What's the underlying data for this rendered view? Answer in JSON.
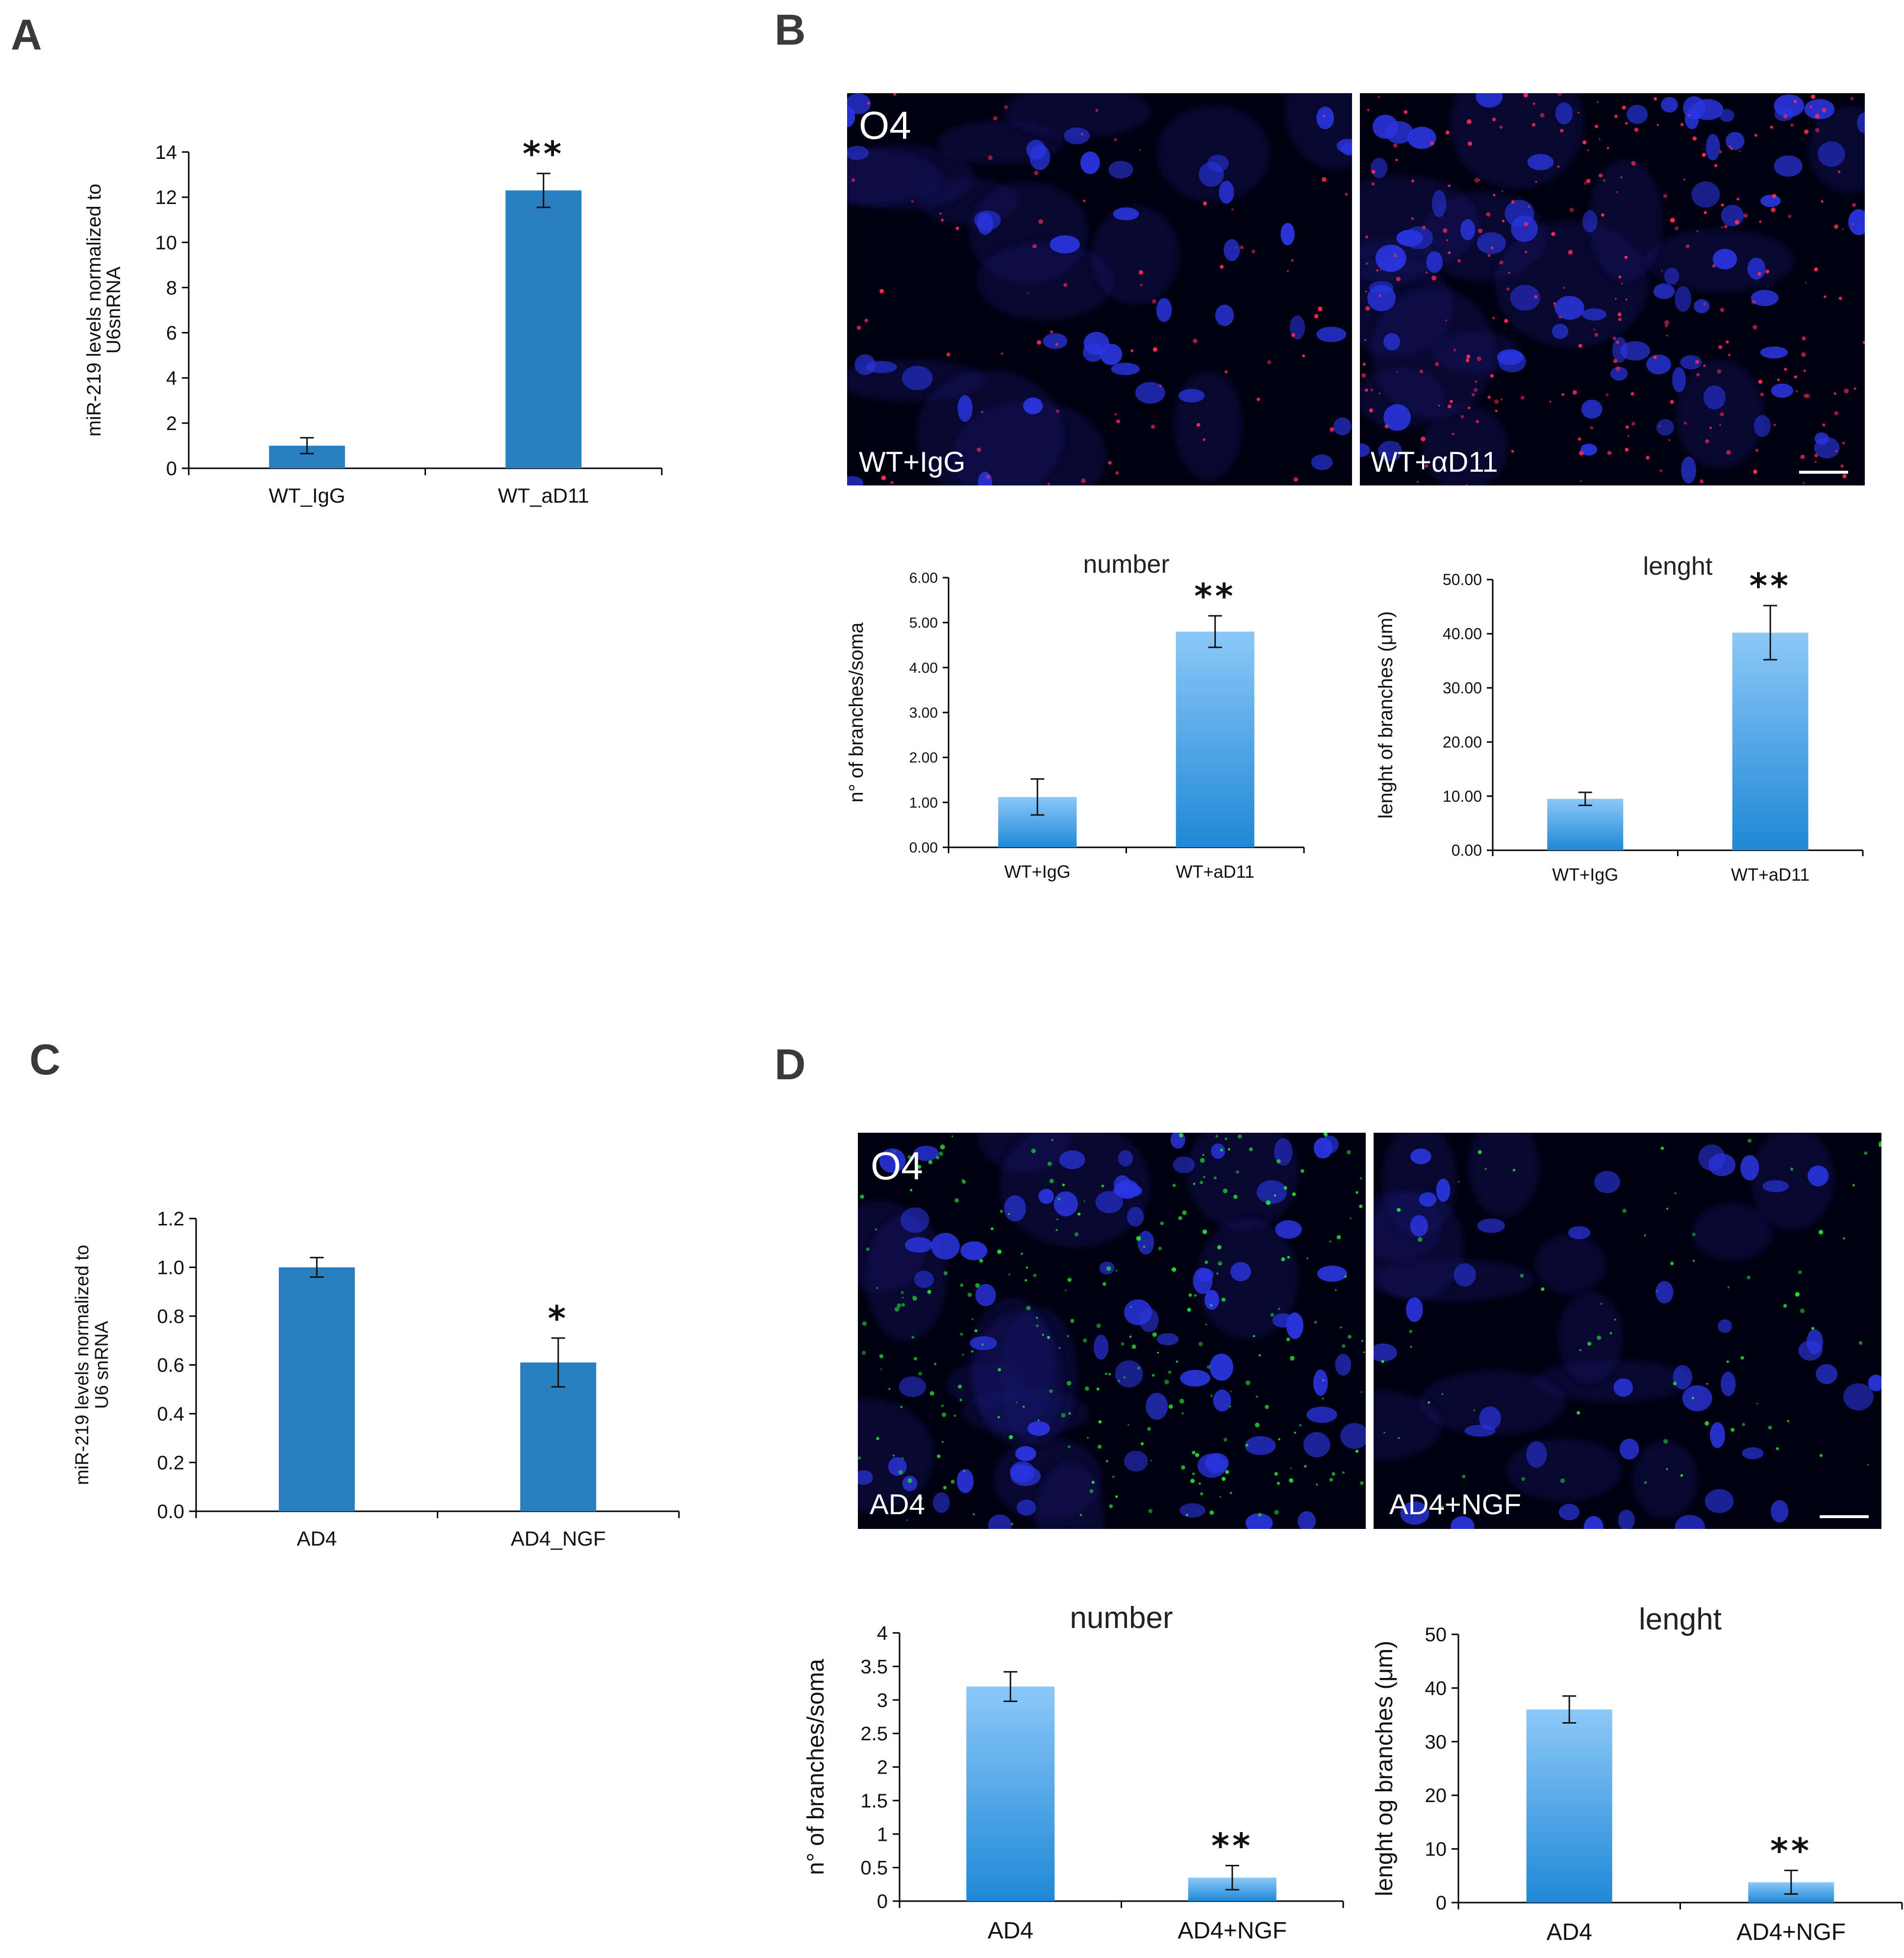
{
  "panels": {
    "A": {
      "letter": "A"
    },
    "B": {
      "letter": "B",
      "image_label_left_top": "O4",
      "image_label_left_bottom": "WT+IgG",
      "image_label_right_bottom": "WT+αD11",
      "fluor_color": "#ff2a55"
    },
    "C": {
      "letter": "C"
    },
    "D": {
      "letter": "D",
      "image_label_left_top": "O4",
      "image_label_left_bottom": "AD4",
      "image_label_right_bottom": "AD4+NGF",
      "fluor_color": "#22dd33"
    }
  },
  "colors": {
    "bar_solid": "#2a7fc0",
    "bar_grad_top": "#8cc8f8",
    "bar_grad_bottom": "#1f88d6",
    "nuclei": "#2a35e0",
    "axis": "#000000"
  },
  "chart_data": [
    {
      "id": "A",
      "type": "bar",
      "categories": [
        "WT_IgG",
        "WT_aD11"
      ],
      "values": [
        1.0,
        12.3
      ],
      "errors": [
        0.35,
        0.75
      ],
      "significance": [
        "",
        "**"
      ],
      "title": "",
      "xlabel": "",
      "ylabel": "miR-219 levels normalized to U6snRNA",
      "ylabel_lines": [
        "miR-219 levels normalized to",
        "U6snRNA"
      ],
      "ylim": [
        0,
        14
      ],
      "yticks": [
        "0",
        "2",
        "4",
        "6",
        "8",
        "10",
        "12",
        "14"
      ],
      "style": "solid"
    },
    {
      "id": "B-number",
      "type": "bar",
      "categories": [
        "WT+IgG",
        "WT+aD11"
      ],
      "values": [
        1.12,
        4.8
      ],
      "errors": [
        0.4,
        0.35
      ],
      "significance": [
        "",
        "**"
      ],
      "title": "number",
      "xlabel": "",
      "ylabel": "n° of branches/soma",
      "ylabel_lines": [
        "n° of branches/soma"
      ],
      "ylim": [
        0,
        6
      ],
      "yticks": [
        "0.00",
        "1.00",
        "2.00",
        "3.00",
        "4.00",
        "5.00",
        "6.00"
      ],
      "style": "gradient"
    },
    {
      "id": "B-length",
      "type": "bar",
      "categories": [
        "WT+IgG",
        "WT+aD11"
      ],
      "values": [
        9.5,
        40.2
      ],
      "errors": [
        1.2,
        5.0
      ],
      "significance": [
        "",
        "**"
      ],
      "title": "lenght",
      "xlabel": "",
      "ylabel": "lenght of branches (μm)",
      "ylabel_lines": [
        "lenght of branches (μm)"
      ],
      "ylim": [
        0,
        50
      ],
      "yticks": [
        "0.00",
        "10.00",
        "20.00",
        "30.00",
        "40.00",
        "50.00"
      ],
      "style": "gradient"
    },
    {
      "id": "C",
      "type": "bar",
      "categories": [
        "AD4",
        "AD4_NGF"
      ],
      "values": [
        1.0,
        0.61
      ],
      "errors": [
        0.04,
        0.1
      ],
      "significance": [
        "",
        "*"
      ],
      "title": "",
      "xlabel": "",
      "ylabel": "miR-219 levels normalized to U6 snRNA",
      "ylabel_lines": [
        "miR-219 levels normalized to",
        "U6 snRNA"
      ],
      "ylim": [
        0,
        1.2
      ],
      "yticks": [
        "0.0",
        "0.2",
        "0.4",
        "0.6",
        "0.8",
        "1.0",
        "1.2"
      ],
      "style": "solid"
    },
    {
      "id": "D-number",
      "type": "bar",
      "categories": [
        "AD4",
        "AD4+NGF"
      ],
      "values": [
        3.2,
        0.35
      ],
      "errors": [
        0.22,
        0.18
      ],
      "significance": [
        "",
        "**"
      ],
      "title": "number",
      "xlabel": "",
      "ylabel": "n° of branches/soma",
      "ylabel_lines": [
        "n° of branches/soma"
      ],
      "ylim": [
        0,
        4
      ],
      "yticks": [
        "0",
        "0.5",
        "1",
        "1.5",
        "2",
        "2.5",
        "3",
        "3.5",
        "4"
      ],
      "style": "gradient"
    },
    {
      "id": "D-length",
      "type": "bar",
      "categories": [
        "AD4",
        "AD4+NGF"
      ],
      "values": [
        36.0,
        3.8
      ],
      "errors": [
        2.5,
        2.2
      ],
      "significance": [
        "",
        "**"
      ],
      "title": "lenght",
      "xlabel": "",
      "ylabel": "lenght og branches (μm)",
      "ylabel_lines": [
        "lenght og branches (μm)"
      ],
      "ylim": [
        0,
        50
      ],
      "yticks": [
        "0",
        "10",
        "20",
        "30",
        "40",
        "50"
      ],
      "style": "gradient"
    }
  ]
}
